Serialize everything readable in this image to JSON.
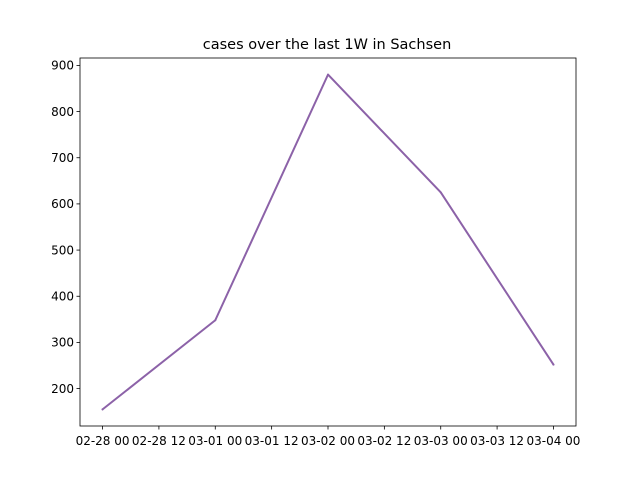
{
  "chart_data": {
    "type": "line",
    "title": "cases over the last 1W in Sachsen",
    "xlabel": "",
    "ylabel": "",
    "x": [
      "2021-02-28 00:00",
      "2021-03-01 00:00",
      "2021-03-02 00:00",
      "2021-03-03 00:00",
      "2021-03-04 00:00"
    ],
    "series": [
      {
        "values": [
          155,
          348,
          880,
          625,
          252
        ],
        "color": "#8c62a8"
      }
    ],
    "xlim": [
      "2021-02-27 19:12",
      "2021-03-04 04:48"
    ],
    "ylim": [
      119,
      916
    ],
    "x_ticks": [
      "02-28 00",
      "02-28 12",
      "03-01 00",
      "03-01 12",
      "03-02 00",
      "03-02 12",
      "03-03 00",
      "03-03 12",
      "03-04 00"
    ],
    "y_ticks": [
      200,
      300,
      400,
      500,
      600,
      700,
      800,
      900
    ],
    "grid": false,
    "legend": "none"
  }
}
